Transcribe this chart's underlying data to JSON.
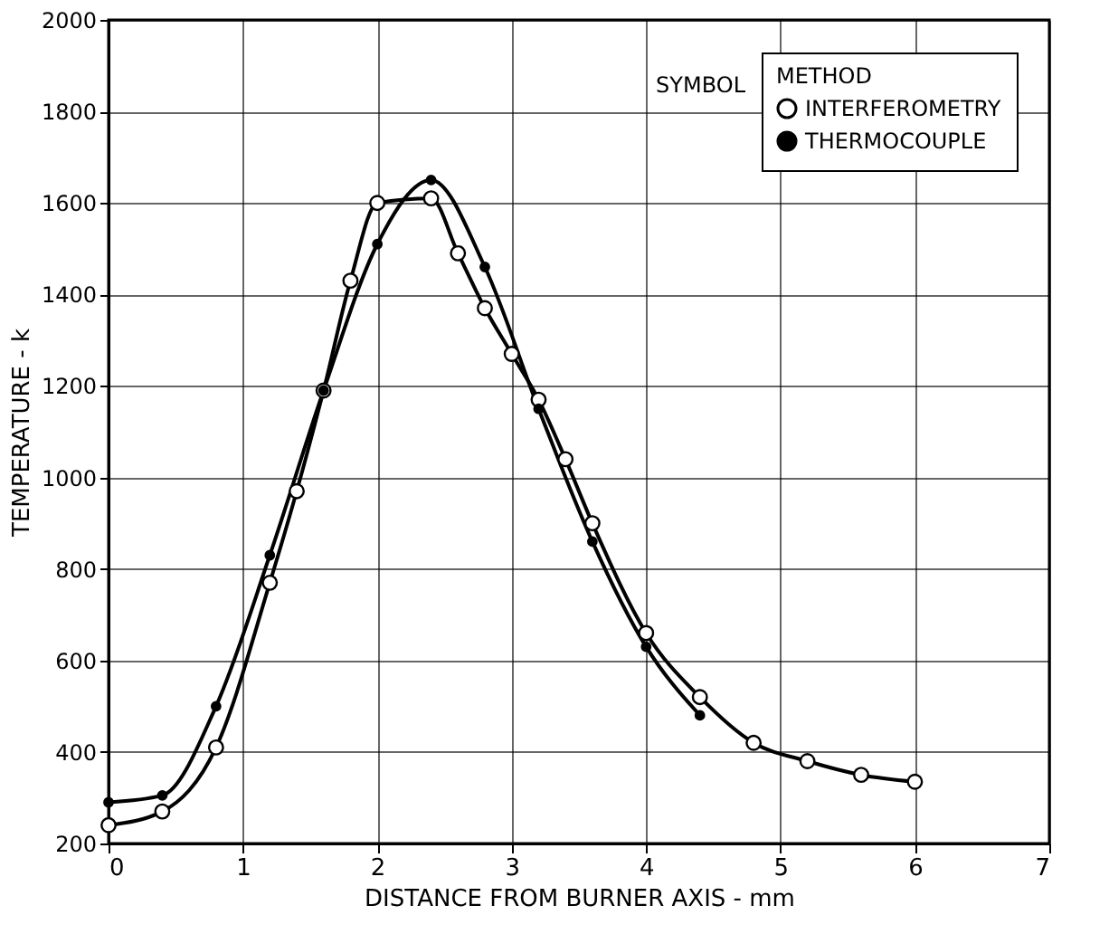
{
  "chart_data": {
    "type": "line",
    "xlabel": "DISTANCE FROM BURNER AXIS - mm",
    "ylabel": "TEMPERATURE - k",
    "legend_title": "METHOD",
    "annotations": [
      "SYMBOL"
    ],
    "xlim": [
      0,
      7
    ],
    "xticks": [
      0,
      1,
      2,
      3,
      4,
      5,
      6,
      7
    ],
    "ylim": [
      200,
      2000
    ],
    "yticks": [
      200,
      400,
      600,
      800,
      1000,
      1200,
      1400,
      1600,
      1800,
      2000
    ],
    "grid": true,
    "legend": "top right",
    "marker": "circle",
    "line_style": "solid",
    "series": [
      {
        "name": "INTERFEROMETRY",
        "color": "#000000",
        "x": [
          0,
          0.4,
          0.8,
          1.2,
          1.4,
          1.6,
          1.8,
          2.0,
          2.4,
          2.6,
          2.8,
          3.0,
          3.2,
          3.4,
          3.6,
          4.0,
          4.4,
          4.8,
          5.2,
          5.6,
          6.0
        ],
        "values": [
          240,
          270,
          410,
          770,
          970,
          1190,
          1430,
          1600,
          1610,
          1490,
          1370,
          1270,
          1170,
          1040,
          900,
          660,
          520,
          420,
          380,
          350,
          335
        ]
      },
      {
        "name": "THERMOCOUPLE",
        "color": "#000000",
        "x": [
          0,
          0.4,
          0.8,
          1.2,
          1.6,
          2.0,
          2.4,
          2.8,
          3.2,
          3.6,
          4.0,
          4.4
        ],
        "values": [
          290,
          305,
          500,
          830,
          1190,
          1510,
          1650,
          1460,
          1150,
          860,
          630,
          480
        ]
      }
    ]
  }
}
